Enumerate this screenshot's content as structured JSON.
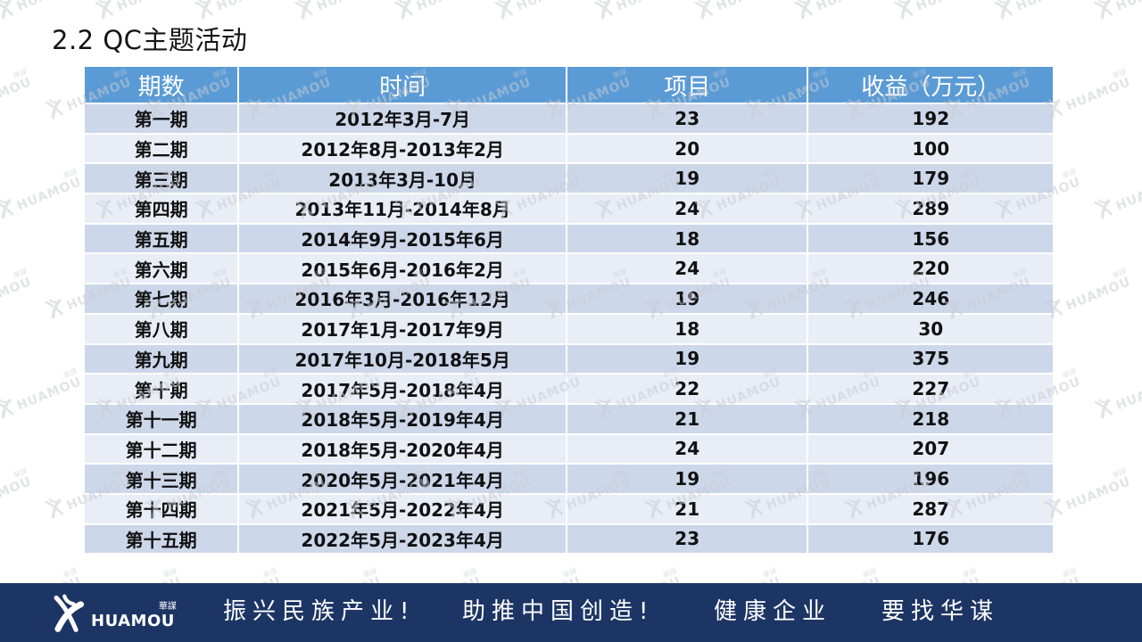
{
  "slide": {
    "title": "2.2 QC主题活动"
  },
  "table": {
    "columns": [
      "期数",
      "时间",
      "项目",
      "收益（万元）"
    ],
    "rows": [
      [
        "第一期",
        "2012年3月-7月",
        "23",
        "192"
      ],
      [
        "第二期",
        "2012年8月-2013年2月",
        "20",
        "100"
      ],
      [
        "第三期",
        "2013年3月-10月",
        "19",
        "179"
      ],
      [
        "第四期",
        "2013年11月-2014年8月",
        "24",
        "289"
      ],
      [
        "第五期",
        "2014年9月-2015年6月",
        "18",
        "156"
      ],
      [
        "第六期",
        "2015年6月-2016年2月",
        "24",
        "220"
      ],
      [
        "第七期",
        "2016年3月-2016年12月",
        "19",
        "246"
      ],
      [
        "第八期",
        "2017年1月-2017年9月",
        "18",
        "30"
      ],
      [
        "第九期",
        "2017年10月-2018年5月",
        "19",
        "375"
      ],
      [
        "第十期",
        "2017年5月-2018年4月",
        "22",
        "227"
      ],
      [
        "第十一期",
        "2018年5月-2019年4月",
        "21",
        "218"
      ],
      [
        "第十二期",
        "2018年5月-2020年4月",
        "24",
        "207"
      ],
      [
        "第十三期",
        "2020年5月-2021年4月",
        "19",
        "196"
      ],
      [
        "第十四期",
        "2021年5月-2022年4月",
        "21",
        "287"
      ],
      [
        "第十五期",
        "2022年5月-2023年4月",
        "23",
        "176"
      ]
    ]
  },
  "watermark": {
    "text": "HUAMOU",
    "cjk": "華謀"
  },
  "footer": {
    "logo": {
      "brand": "HUAMOU",
      "brand_cjk": "華謀"
    },
    "slogans": [
      "振兴民族产业!",
      "助推中国创造!",
      "健康企业",
      "要找华谋"
    ]
  },
  "colors": {
    "header_bg": "#5B9BD5",
    "row_band_dark": "#CDD7EA",
    "row_band_light": "#E9EDF6",
    "footer_bg": "#1C3564",
    "watermark_gray": "#C8CBD3",
    "header_text": "#FFFFFF",
    "body_text": "#111111"
  }
}
